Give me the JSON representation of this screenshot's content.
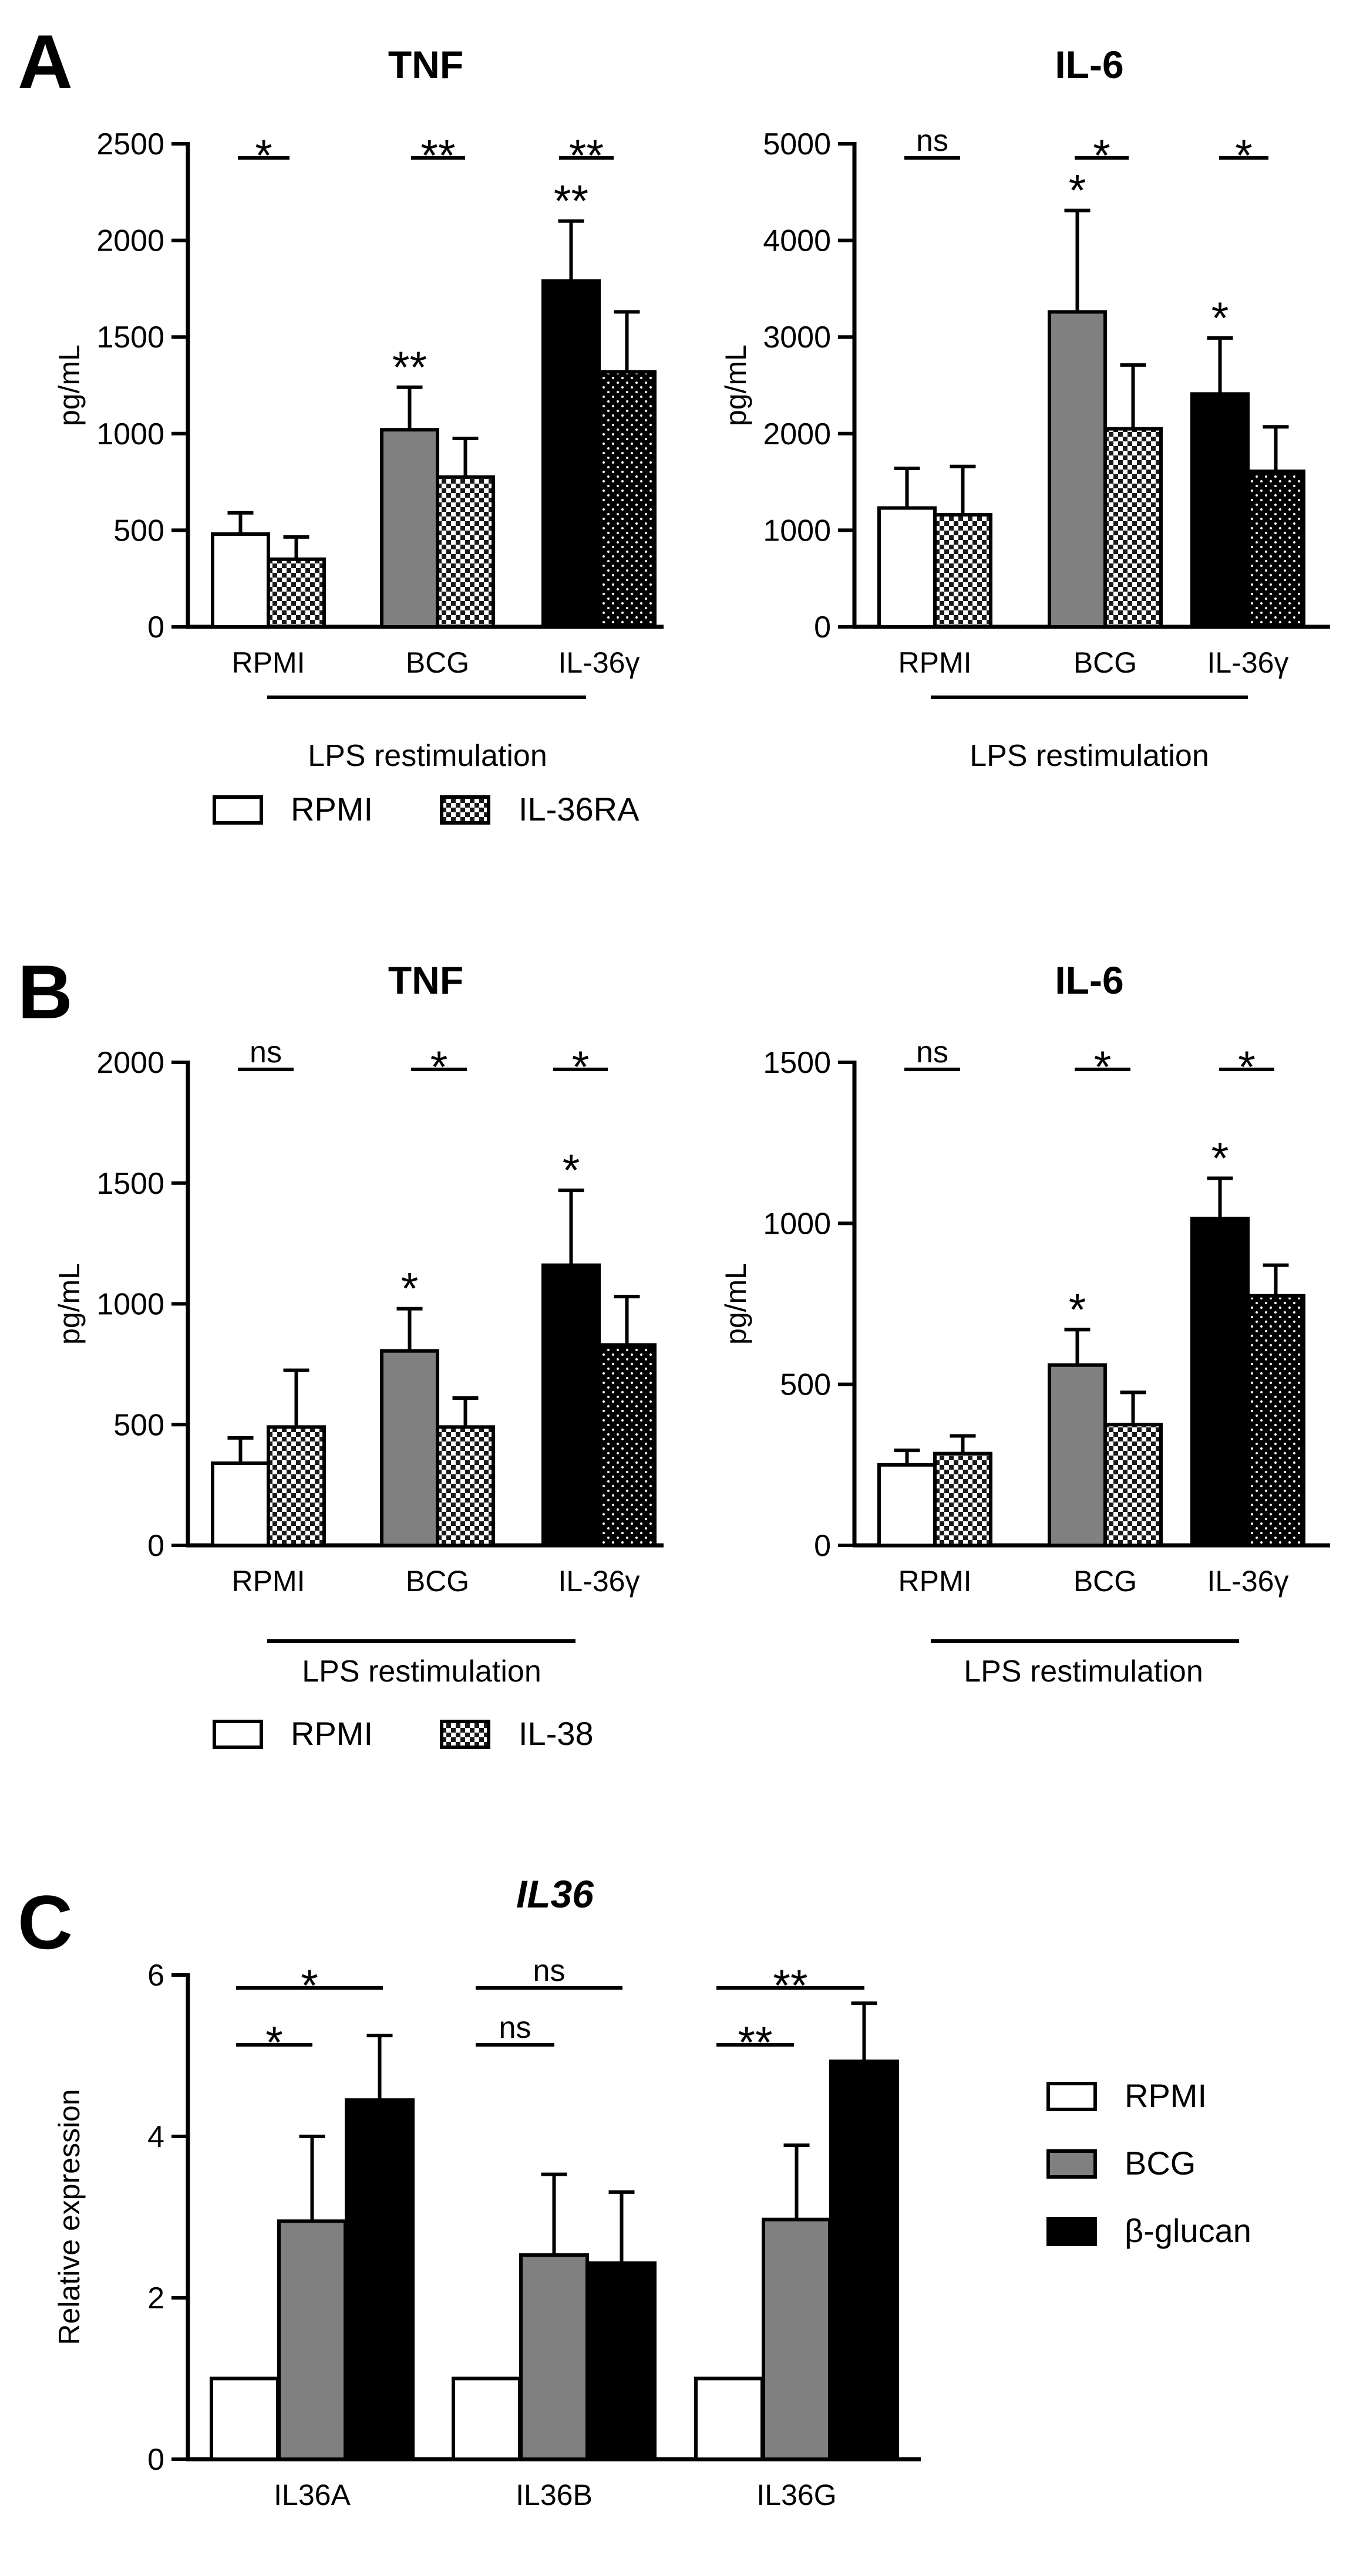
{
  "colors": {
    "white": "#ffffff",
    "gray": "#808080",
    "black": "#000000",
    "axis": "#000000"
  },
  "panels": [
    {
      "letter": "A",
      "legend": [
        {
          "label": "RPMI",
          "pattern": "white"
        },
        {
          "label": "IL-36RA",
          "pattern": "check"
        }
      ]
    },
    {
      "letter": "B",
      "legend": [
        {
          "label": "RPMI",
          "pattern": "white"
        },
        {
          "label": "IL-38",
          "pattern": "check"
        }
      ]
    },
    {
      "letter": "C",
      "legend": [
        {
          "label": "RPMI",
          "pattern": "white"
        },
        {
          "label": "BCG",
          "pattern": "gray"
        },
        {
          "label": "β-glucan",
          "pattern": "black"
        }
      ]
    }
  ],
  "chart_data": [
    {
      "id": "A-TNF",
      "panel": "A",
      "type": "bar",
      "title": "TNF",
      "title_italic": false,
      "ylabel": "pg/mL",
      "ylim": [
        0,
        2500
      ],
      "yticks": [
        0,
        500,
        1000,
        1500,
        2000,
        2500
      ],
      "categories": [
        "RPMI",
        "BCG",
        "IL-36γ"
      ],
      "group_label": "LPS restimulation",
      "series": [
        {
          "name": "RPMI",
          "fills": [
            "white",
            "gray",
            "black"
          ],
          "values": [
            480,
            1020,
            1790
          ],
          "errors": [
            110,
            220,
            310
          ],
          "stars": [
            "",
            "**",
            "**"
          ]
        },
        {
          "name": "IL-36RA",
          "fills": [
            "check",
            "check",
            "dots"
          ],
          "values": [
            350,
            775,
            1320
          ],
          "errors": [
            115,
            200,
            310
          ],
          "stars": [
            "",
            "",
            ""
          ]
        }
      ],
      "comparisons": [
        "*",
        "**",
        "**"
      ]
    },
    {
      "id": "A-IL6",
      "panel": "A",
      "type": "bar",
      "title": "IL-6",
      "title_italic": false,
      "ylabel": "pg/mL",
      "ylim": [
        0,
        5000
      ],
      "yticks": [
        0,
        1000,
        2000,
        3000,
        4000,
        5000
      ],
      "categories": [
        "RPMI",
        "BCG",
        "IL-36γ"
      ],
      "group_label": "LPS restimulation",
      "series": [
        {
          "name": "RPMI",
          "fills": [
            "white",
            "gray",
            "black"
          ],
          "values": [
            1230,
            3260,
            2410
          ],
          "errors": [
            410,
            1050,
            580
          ],
          "stars": [
            "",
            "*",
            "*"
          ]
        },
        {
          "name": "IL-36RA",
          "fills": [
            "check",
            "check",
            "dots"
          ],
          "values": [
            1160,
            2050,
            1610
          ],
          "errors": [
            500,
            660,
            460
          ],
          "stars": [
            "",
            "",
            ""
          ]
        }
      ],
      "comparisons": [
        "ns",
        "*",
        "*"
      ]
    },
    {
      "id": "B-TNF",
      "panel": "B",
      "type": "bar",
      "title": "TNF",
      "title_italic": false,
      "ylabel": "pg/mL",
      "ylim": [
        0,
        2000
      ],
      "yticks": [
        0,
        500,
        1000,
        1500,
        2000
      ],
      "categories": [
        "RPMI",
        "BCG",
        "IL-36γ"
      ],
      "group_label": "LPS restimulation",
      "series": [
        {
          "name": "RPMI",
          "fills": [
            "white",
            "gray",
            "black"
          ],
          "values": [
            340,
            805,
            1160
          ],
          "errors": [
            105,
            175,
            310
          ],
          "stars": [
            "",
            "*",
            "*"
          ]
        },
        {
          "name": "IL-38",
          "fills": [
            "check",
            "check",
            "dots"
          ],
          "values": [
            490,
            490,
            830
          ],
          "errors": [
            235,
            120,
            200
          ],
          "stars": [
            "",
            "",
            ""
          ]
        }
      ],
      "comparisons": [
        "ns",
        "*",
        "*"
      ]
    },
    {
      "id": "B-IL6",
      "panel": "B",
      "type": "bar",
      "title": "IL-6",
      "title_italic": false,
      "ylabel": "pg/mL",
      "ylim": [
        0,
        1500
      ],
      "yticks": [
        0,
        500,
        1000,
        1500
      ],
      "categories": [
        "RPMI",
        "BCG",
        "IL-36γ"
      ],
      "group_label": "LPS restimulation",
      "series": [
        {
          "name": "RPMI",
          "fills": [
            "white",
            "gray",
            "black"
          ],
          "values": [
            250,
            560,
            1015
          ],
          "errors": [
            45,
            110,
            125
          ],
          "stars": [
            "",
            "*",
            "*"
          ]
        },
        {
          "name": "IL-38",
          "fills": [
            "check",
            "check",
            "dots"
          ],
          "values": [
            285,
            375,
            775
          ],
          "errors": [
            55,
            100,
            95
          ],
          "stars": [
            "",
            "",
            ""
          ]
        }
      ],
      "comparisons": [
        "ns",
        "*",
        "*"
      ]
    },
    {
      "id": "C-IL36",
      "panel": "C",
      "type": "bar",
      "title": "IL36",
      "title_italic": true,
      "ylabel": "Relative expression",
      "ylim": [
        0,
        6
      ],
      "yticks": [
        0,
        2,
        4,
        6
      ],
      "categories": [
        "IL36A",
        "IL36B",
        "IL36G"
      ],
      "series": [
        {
          "name": "RPMI",
          "fill": "white",
          "values": [
            1.0,
            1.0,
            1.0
          ],
          "errors": [
            0,
            0,
            0
          ]
        },
        {
          "name": "BCG",
          "fill": "gray",
          "values": [
            2.95,
            2.53,
            2.97
          ],
          "errors": [
            1.05,
            1.0,
            0.92
          ]
        },
        {
          "name": "β-glucan",
          "fill": "black",
          "values": [
            4.45,
            2.43,
            4.93
          ],
          "errors": [
            0.8,
            0.88,
            0.72
          ]
        }
      ],
      "comparisons_upper": [
        "*",
        "ns",
        "**"
      ],
      "comparisons_lower": [
        "*",
        "ns",
        "**"
      ]
    }
  ]
}
